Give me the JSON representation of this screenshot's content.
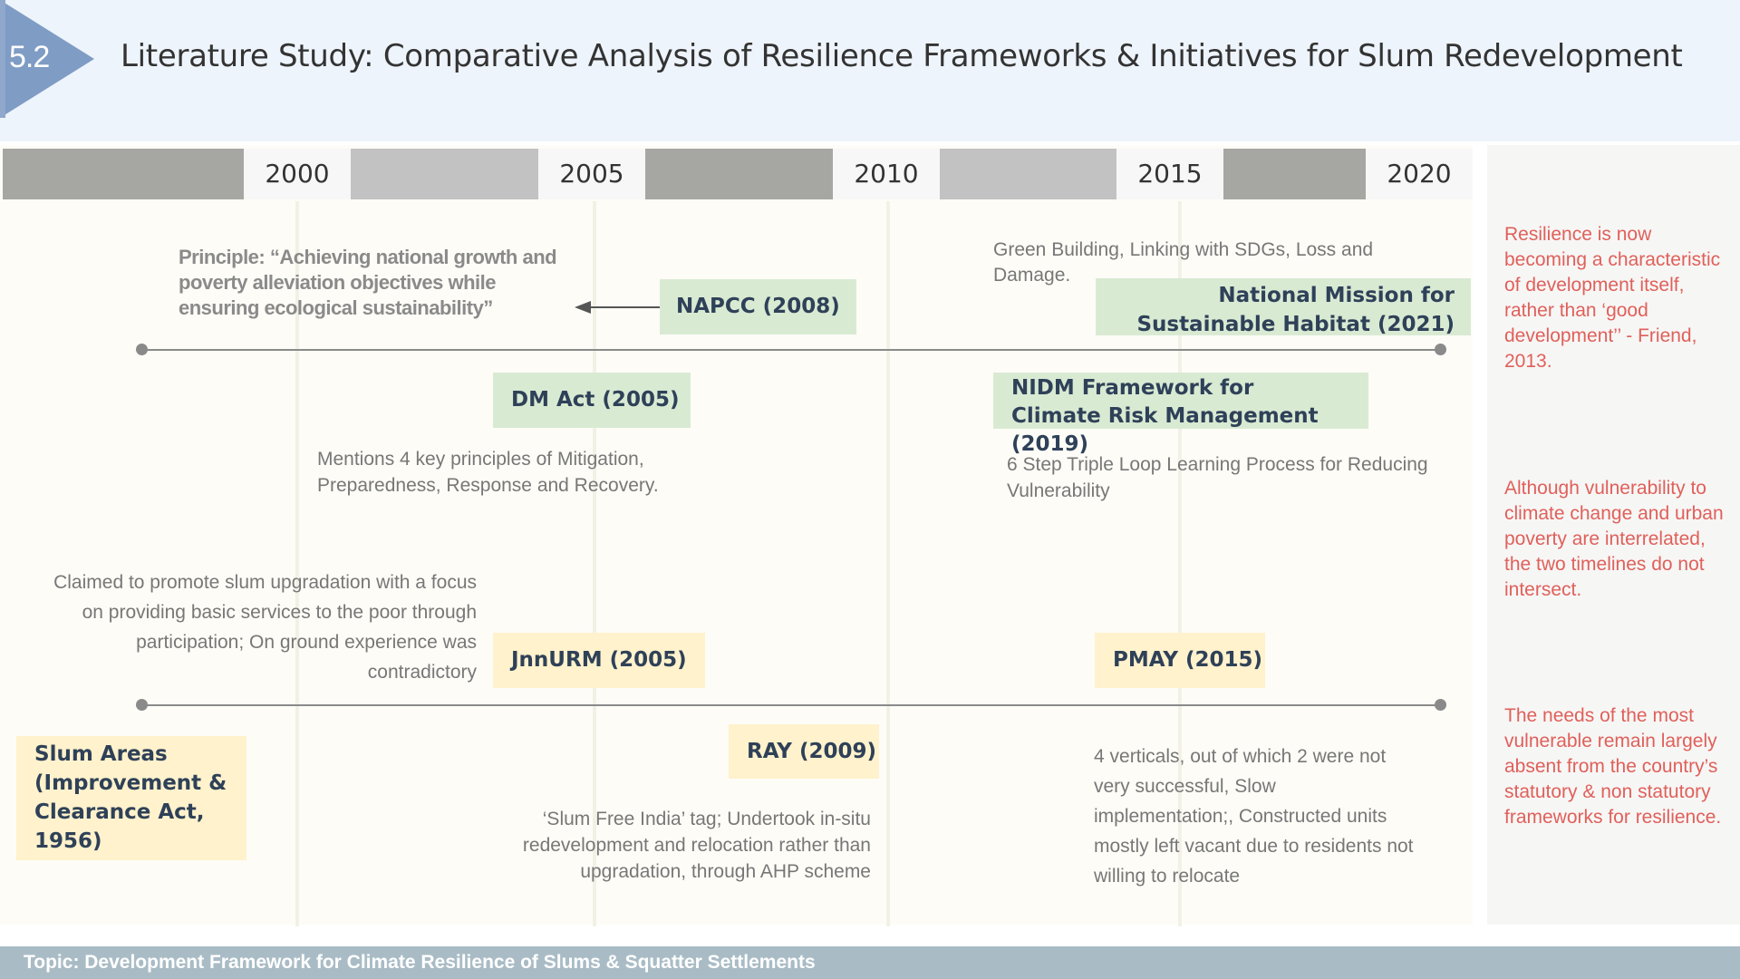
{
  "header": {
    "section_number": "5.2",
    "title": "Literature Study: Comparative Analysis of Resilience Frameworks & Initiatives for Slum Redevelopment"
  },
  "timeline": {
    "years": [
      "2000",
      "2005",
      "2010",
      "2015",
      "2020"
    ]
  },
  "upper": {
    "principle_text": "Principle: “Achieving national growth and poverty alleviation objectives while ensuring ecological sustainability”",
    "napcc_label": "NAPCC (2008)",
    "nmsh_desc": "Green Building, Linking with SDGs, Loss and Damage.",
    "nmsh_label": "National Mission for Sustainable Habitat (2021)",
    "dm_act_label": "DM Act (2005)",
    "dm_act_desc": "Mentions 4 key principles of Mitigation, Preparedness, Response and Recovery.",
    "nidm_label": "NIDM Framework for Climate Risk Management (2019)",
    "nidm_desc": "6 Step Triple Loop Learning Process for Reducing Vulnerability"
  },
  "lower": {
    "jnnurm_desc": "Claimed to promote slum upgradation with a focus on providing basic services to the poor through participation; On ground experience was contradictory",
    "jnnurm_label": "JnnURM (2005)",
    "pmay_label": "PMAY (2015)",
    "slum_act_label": "Slum Areas (Improvement & Clearance Act, 1956)",
    "ray_label": "RAY (2009)",
    "ray_desc": "‘Slum Free India’ tag; Undertook in-situ redevelopment and relocation rather than upgradation, through AHP scheme",
    "pmay_desc": "4 verticals, out of which 2 were not very successful, Slow implementation;, Constructed units mostly left vacant due to residents not willing to relocate"
  },
  "side_notes": [
    "Resilience is now becoming a characteristic of development itself, rather than ‘good development’’ - Friend, 2013.",
    "Although vulnerability to climate change and urban poverty are interrelated, the two timelines do not intersect.",
    "The needs of the most vulnerable remain largely absent from the country’s statutory & non statutory frameworks for resilience."
  ],
  "footer": {
    "topic": "Topic: Development Framework for Climate Resilience of Slums & Squatter Settlements"
  },
  "colors": {
    "accent_chevron": "#7e9cc4",
    "green_box": "#d9ead3",
    "yellow_box": "#fff2cc",
    "note_red": "#e0605a",
    "footer_bar": "#a9bcc6"
  }
}
